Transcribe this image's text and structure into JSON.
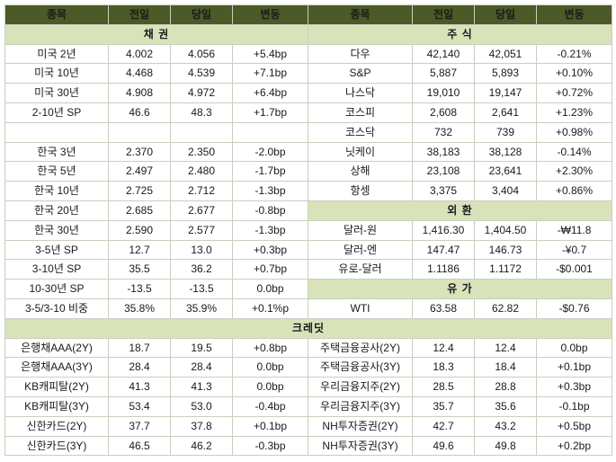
{
  "colors": {
    "header_bg": "#4b5a26",
    "header_text": "#f2eedb",
    "section_bg": "#d9e3ba",
    "section_text": "#3a5618",
    "blue": "#0a0ac6",
    "red": "#c00000",
    "grid": "#c9cfbe"
  },
  "table": {
    "column_headers": [
      "종목",
      "전일",
      "당일",
      "변동"
    ],
    "sections": {
      "bonds": {
        "title": "채 권",
        "rows": [
          {
            "label": "미국 2년",
            "prev": "4.002",
            "today": "4.056",
            "change": "+5.4bp",
            "change_color": "blue"
          },
          {
            "label": "미국 10년",
            "prev": "4.468",
            "today": "4.539",
            "change": "+7.1bp",
            "change_color": "blue"
          },
          {
            "label": "미국 30년",
            "prev": "4.908",
            "today": "4.972",
            "change": "+6.4bp",
            "change_color": "blue"
          },
          {
            "label": "2-10년 SP",
            "prev": "46.6",
            "today": "48.3",
            "change": "+1.7bp",
            "change_color": "blue"
          },
          {
            "label": "",
            "prev": "",
            "today": "",
            "change": "",
            "change_color": "black"
          },
          {
            "label": "한국 3년",
            "prev": "2.370",
            "today": "2.350",
            "change": "-2.0bp",
            "change_color": "red"
          },
          {
            "label": "한국 5년",
            "prev": "2.497",
            "today": "2.480",
            "change": "-1.7bp",
            "change_color": "red"
          },
          {
            "label": "한국 10년",
            "prev": "2.725",
            "today": "2.712",
            "change": "-1.3bp",
            "change_color": "red"
          },
          {
            "label": "한국 20년",
            "prev": "2.685",
            "today": "2.677",
            "change": "-0.8bp",
            "change_color": "red"
          },
          {
            "label": "한국 30년",
            "prev": "2.590",
            "today": "2.577",
            "change": "-1.3bp",
            "change_color": "red"
          },
          {
            "label": "3-5년 SP",
            "prev": "12.7",
            "today": "13.0",
            "change": "+0.3bp",
            "change_color": "blue"
          },
          {
            "label": "3-10년 SP",
            "prev": "35.5",
            "today": "36.2",
            "change": "+0.7bp",
            "change_color": "blue"
          },
          {
            "label": "10-30년 SP",
            "prev": "-13.5",
            "today": "-13.5",
            "change": "0.0bp",
            "change_color": "black"
          },
          {
            "label": "3-5/3-10 비중",
            "prev": "35.8%",
            "today": "35.9%",
            "change": "+0.1%p",
            "change_color": "blue"
          }
        ]
      },
      "stocks": {
        "title": "주 식",
        "rows": [
          {
            "label": "다우",
            "prev": "42,140",
            "today": "42,051",
            "change": "-0.21%",
            "change_color": "red"
          },
          {
            "label": "S&P",
            "prev": "5,887",
            "today": "5,893",
            "change": "+0.10%",
            "change_color": "red"
          },
          {
            "label": "나스닥",
            "prev": "19,010",
            "today": "19,147",
            "change": "+0.72%",
            "change_color": "red"
          },
          {
            "label": "코스피",
            "prev": "2,608",
            "today": "2,641",
            "change": "+1.23%",
            "change_color": "red"
          },
          {
            "label": "코스닥",
            "prev": "732",
            "today": "739",
            "change": "+0.98%",
            "change_color": "red"
          },
          {
            "label": "닛케이",
            "prev": "38,183",
            "today": "38,128",
            "change": "-0.14%",
            "change_color": "red"
          },
          {
            "label": "상해",
            "prev": "23,108",
            "today": "23,641",
            "change": "+2.30%",
            "change_color": "red"
          },
          {
            "label": "항셍",
            "prev": "3,375",
            "today": "3,404",
            "change": "+0.86%",
            "change_color": "red"
          }
        ]
      },
      "fx": {
        "title": "외 환",
        "rows": [
          {
            "label": "달러-원",
            "prev": "1,416.30",
            "today": "1,404.50",
            "change": "-₩11.8",
            "change_color": "blue"
          },
          {
            "label": "달러-엔",
            "prev": "147.47",
            "today": "146.73",
            "change": "-¥0.7",
            "change_color": "blue"
          },
          {
            "label": "유로-달러",
            "prev": "1.1186",
            "today": "1.1172",
            "change": "-$0.001",
            "change_color": "blue"
          }
        ]
      },
      "oil": {
        "title": "유 가",
        "rows": [
          {
            "label": "WTI",
            "prev": "63.58",
            "today": "62.82",
            "change": "-$0.76",
            "change_color": "blue"
          }
        ]
      },
      "credit": {
        "title": "크레딧",
        "left_rows": [
          {
            "label": "은행채AAA(2Y)",
            "prev": "18.7",
            "today": "19.5",
            "change": "+0.8bp",
            "change_color": "blue"
          },
          {
            "label": "은행채AAA(3Y)",
            "prev": "28.4",
            "today": "28.4",
            "change": "0.0bp",
            "change_color": "black"
          },
          {
            "label": "KB캐피탈(2Y)",
            "prev": "41.3",
            "today": "41.3",
            "change": "0.0bp",
            "change_color": "black"
          },
          {
            "label": "KB캐피탈(3Y)",
            "prev": "53.4",
            "today": "53.0",
            "change": "-0.4bp",
            "change_color": "red"
          },
          {
            "label": "신한카드(2Y)",
            "prev": "37.7",
            "today": "37.8",
            "change": "+0.1bp",
            "change_color": "blue"
          },
          {
            "label": "신한카드(3Y)",
            "prev": "46.5",
            "today": "46.2",
            "change": "-0.3bp",
            "change_color": "red"
          }
        ],
        "right_rows": [
          {
            "label": "주택금융공사(2Y)",
            "prev": "12.4",
            "today": "12.4",
            "change": "0.0bp",
            "change_color": "black"
          },
          {
            "label": "주택금융공사(3Y)",
            "prev": "18.3",
            "today": "18.4",
            "change": "+0.1bp",
            "change_color": "blue"
          },
          {
            "label": "우리금융지주(2Y)",
            "prev": "28.5",
            "today": "28.8",
            "change": "+0.3bp",
            "change_color": "blue"
          },
          {
            "label": "우리금융지주(3Y)",
            "prev": "35.7",
            "today": "35.6",
            "change": "-0.1bp",
            "change_color": "red"
          },
          {
            "label": "NH투자증권(2Y)",
            "prev": "42.7",
            "today": "43.2",
            "change": "+0.5bp",
            "change_color": "blue"
          },
          {
            "label": "NH투자증권(3Y)",
            "prev": "49.6",
            "today": "49.8",
            "change": "+0.2bp",
            "change_color": "blue"
          }
        ]
      }
    }
  }
}
